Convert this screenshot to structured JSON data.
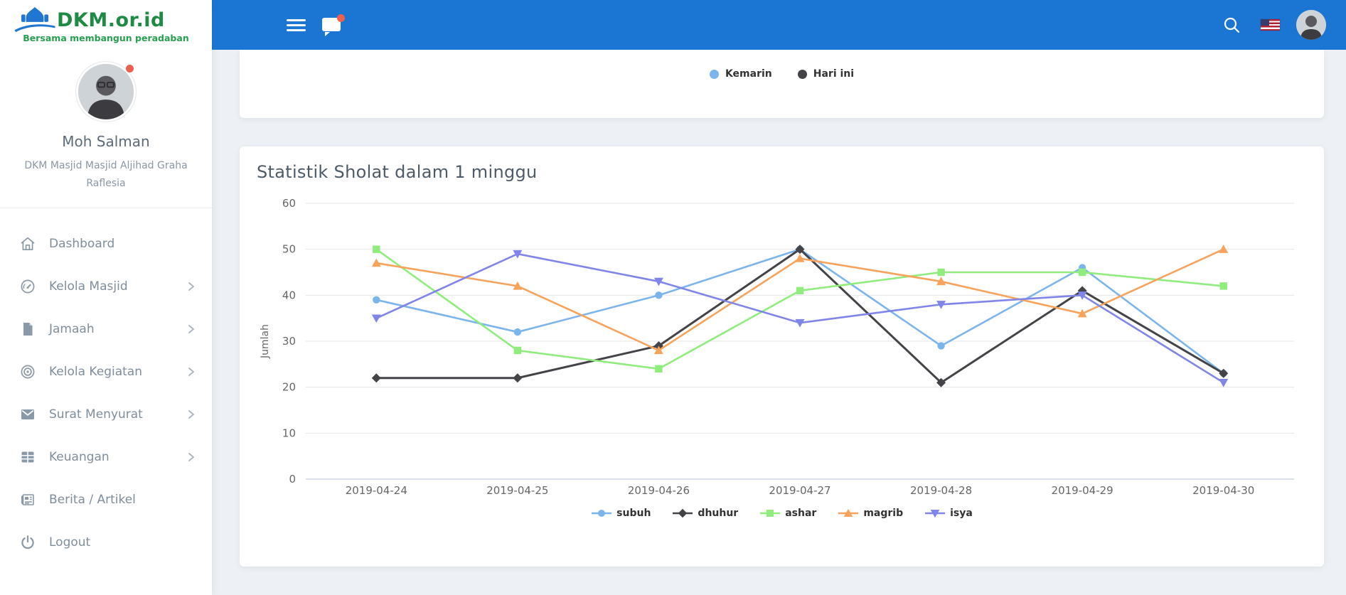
{
  "logo": {
    "title": "DKM.or.id",
    "tagline": "Bersama membangun peradaban",
    "icon": "mosque-logo-icon",
    "brand_green": "#1f8a44",
    "brand_blue": "#2176d2"
  },
  "profile": {
    "name": "Moh Salman",
    "org": "DKM Masjid Masjid Aljihad Graha Raflesia",
    "avatar": "profile-avatar",
    "status_dot_color": "#ee5f4e"
  },
  "sidebar": {
    "items": [
      {
        "label": "Dashboard",
        "icon": "home-icon",
        "expandable": false
      },
      {
        "label": "Kelola Masjid",
        "icon": "gauge-icon",
        "expandable": true
      },
      {
        "label": "Jamaah",
        "icon": "file-icon",
        "expandable": true
      },
      {
        "label": "Kelola Kegiatan",
        "icon": "target-icon",
        "expandable": true
      },
      {
        "label": "Surat Menyurat",
        "icon": "mail-icon",
        "expandable": true
      },
      {
        "label": "Keuangan",
        "icon": "table-icon",
        "expandable": true
      },
      {
        "label": "Berita / Artikel",
        "icon": "news-icon",
        "expandable": false
      },
      {
        "label": "Logout",
        "icon": "power-icon",
        "expandable": false
      }
    ]
  },
  "topbar": {
    "bg_color": "#1a75d3",
    "icons": [
      "menu-icon",
      "chat-icon",
      "search-icon",
      "flag-us-icon",
      "user-avatar"
    ],
    "chat_badge_color": "#ee5f4e"
  },
  "top_card_legend": {
    "items": [
      {
        "label": "Kemarin",
        "color": "#7cb5ec"
      },
      {
        "label": "Hari ini",
        "color": "#434348"
      }
    ]
  },
  "chart_card": {
    "title": "Statistik Sholat dalam 1 minggu"
  },
  "chart_data": {
    "type": "line",
    "title": "Statistik Sholat dalam 1 minggu",
    "categories": [
      "2019-04-24",
      "2019-04-25",
      "2019-04-26",
      "2019-04-27",
      "2019-04-28",
      "2019-04-29",
      "2019-04-30"
    ],
    "series": [
      {
        "name": "subuh",
        "color": "#7cb5ec",
        "marker": "circle",
        "values": [
          39,
          32,
          40,
          50,
          29,
          46,
          23
        ]
      },
      {
        "name": "dhuhur",
        "color": "#434348",
        "marker": "diamond",
        "values": [
          22,
          22,
          29,
          50,
          21,
          41,
          23
        ]
      },
      {
        "name": "ashar",
        "color": "#90ed7d",
        "marker": "square",
        "values": [
          50,
          28,
          24,
          41,
          45,
          45,
          42
        ]
      },
      {
        "name": "magrib",
        "color": "#f7a35c",
        "marker": "triangle",
        "values": [
          47,
          42,
          28,
          48,
          43,
          36,
          50
        ]
      },
      {
        "name": "isya",
        "color": "#8085e9",
        "marker": "triangle-down",
        "values": [
          35,
          49,
          43,
          34,
          38,
          40,
          21
        ]
      }
    ],
    "xlabel": "",
    "ylabel": "Jumlah",
    "ylim": [
      0,
      60
    ],
    "yticks": [
      0,
      10,
      20,
      30,
      40,
      50,
      60
    ],
    "grid": true,
    "legend_position": "bottom",
    "grid_color": "#e6e6e6",
    "axis_line_color": "#ccd6eb",
    "tick_label_color": "#666666"
  }
}
